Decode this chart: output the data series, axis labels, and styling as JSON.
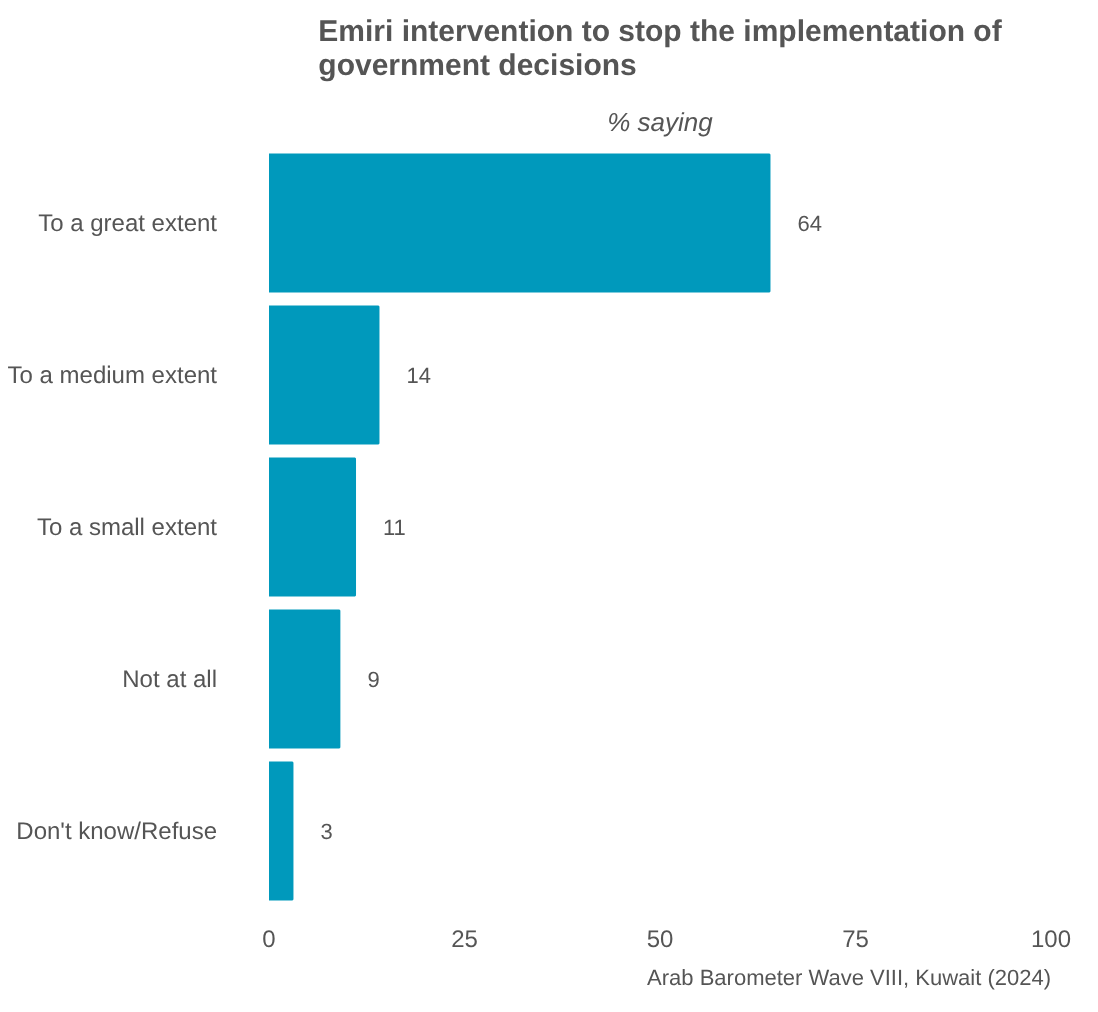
{
  "chart_data": {
    "type": "bar",
    "orientation": "horizontal",
    "title": "Emiri intervention to stop the implementation of government decisions",
    "subtitle": "% saying",
    "categories": [
      "To a great extent",
      "To a medium extent",
      "To a small extent",
      "Not at all",
      "Don't know/Refuse"
    ],
    "values": [
      64,
      14,
      11,
      9,
      3
    ],
    "color": "#0099bc",
    "data_labels": true,
    "xlim": [
      0,
      100
    ],
    "xticks": [
      0,
      25,
      50,
      75,
      100
    ],
    "grid": false,
    "annotations": [
      "Arab Barometer Wave VIII, Kuwait (2024)"
    ]
  }
}
